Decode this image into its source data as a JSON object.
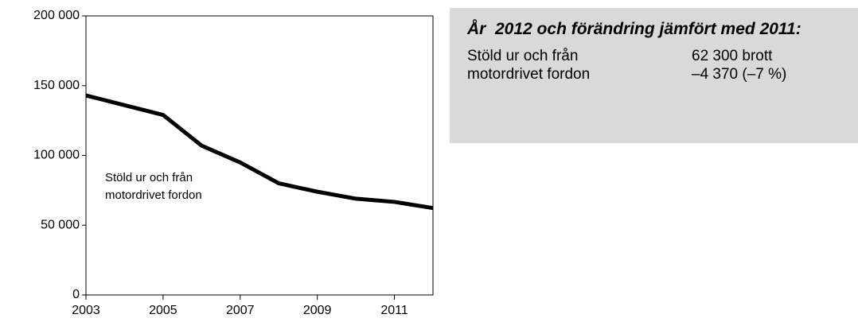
{
  "chart_data": {
    "type": "line",
    "x": [
      2003,
      2004,
      2005,
      2006,
      2007,
      2008,
      2009,
      2010,
      2011,
      2012
    ],
    "series": [
      {
        "name": "Stöld ur och från motordrivet fordon",
        "color": "#000000",
        "values": [
          143000,
          136000,
          129000,
          107000,
          95000,
          80000,
          74000,
          69000,
          66700,
          62300
        ]
      }
    ],
    "annotation": [
      "Stöld ur och från",
      "motordrivet fordon"
    ],
    "xlim": [
      2003,
      2012
    ],
    "xticks": [
      2003,
      2005,
      2007,
      2009,
      2011
    ],
    "ylim": [
      0,
      200000
    ],
    "yticks": [
      {
        "value": 0,
        "label": "0"
      },
      {
        "value": 50000,
        "label": "50 000"
      },
      {
        "value": 100000,
        "label": "100 000"
      },
      {
        "value": 150000,
        "label": "150 000"
      },
      {
        "value": 200000,
        "label": "200 000"
      }
    ],
    "grid": false
  },
  "panel": {
    "title": "År  2012 och förändring jämfört med 2011:",
    "rows": [
      [
        "Stöld ur och från",
        "62 300 brott"
      ],
      [
        "motordrivet fordon",
        "–4 370 (–7 %)"
      ]
    ]
  }
}
